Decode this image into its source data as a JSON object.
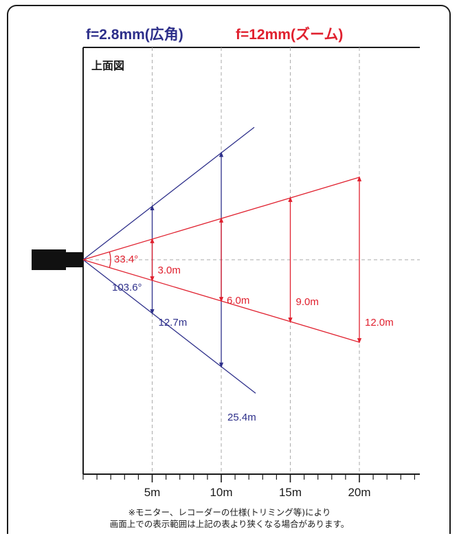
{
  "legend": {
    "wide_label": "f=2.8mm(広角)",
    "zoom_label": "f=12mm(ズーム)"
  },
  "plan_label": "上面図",
  "colors": {
    "wide": "#2d2f8a",
    "zoom": "#e0202e",
    "grid": "#aaaaaa",
    "axis": "#1a1a1a",
    "camera": "#111111"
  },
  "angles": {
    "zoom_angle": "33.4°",
    "wide_angle": "103.6°"
  },
  "distance_axis": {
    "unit": "m",
    "tick_labels": [
      "5m",
      "10m",
      "15m",
      "20m"
    ],
    "distances": [
      5,
      10,
      15,
      20
    ],
    "minor_step": 1,
    "max": 24
  },
  "measurements": {
    "wide": [
      {
        "distance": 5,
        "width": 12.7,
        "label": "12.7m"
      },
      {
        "distance": 10,
        "width": 25.4,
        "label": "25.4m"
      }
    ],
    "zoom": [
      {
        "distance": 5,
        "width": 3.0,
        "label": "3.0m"
      },
      {
        "distance": 10,
        "width": 6.0,
        "label": "6.0m"
      },
      {
        "distance": 15,
        "width": 9.0,
        "label": "9.0m"
      },
      {
        "distance": 20,
        "width": 12.0,
        "label": "12.0m"
      }
    ]
  },
  "footnote": {
    "line1": "※モニター、レコーダーの仕様(トリミング等)により",
    "line2": "画面上での表示範囲は上記の表より狭くなる場合があります。"
  }
}
